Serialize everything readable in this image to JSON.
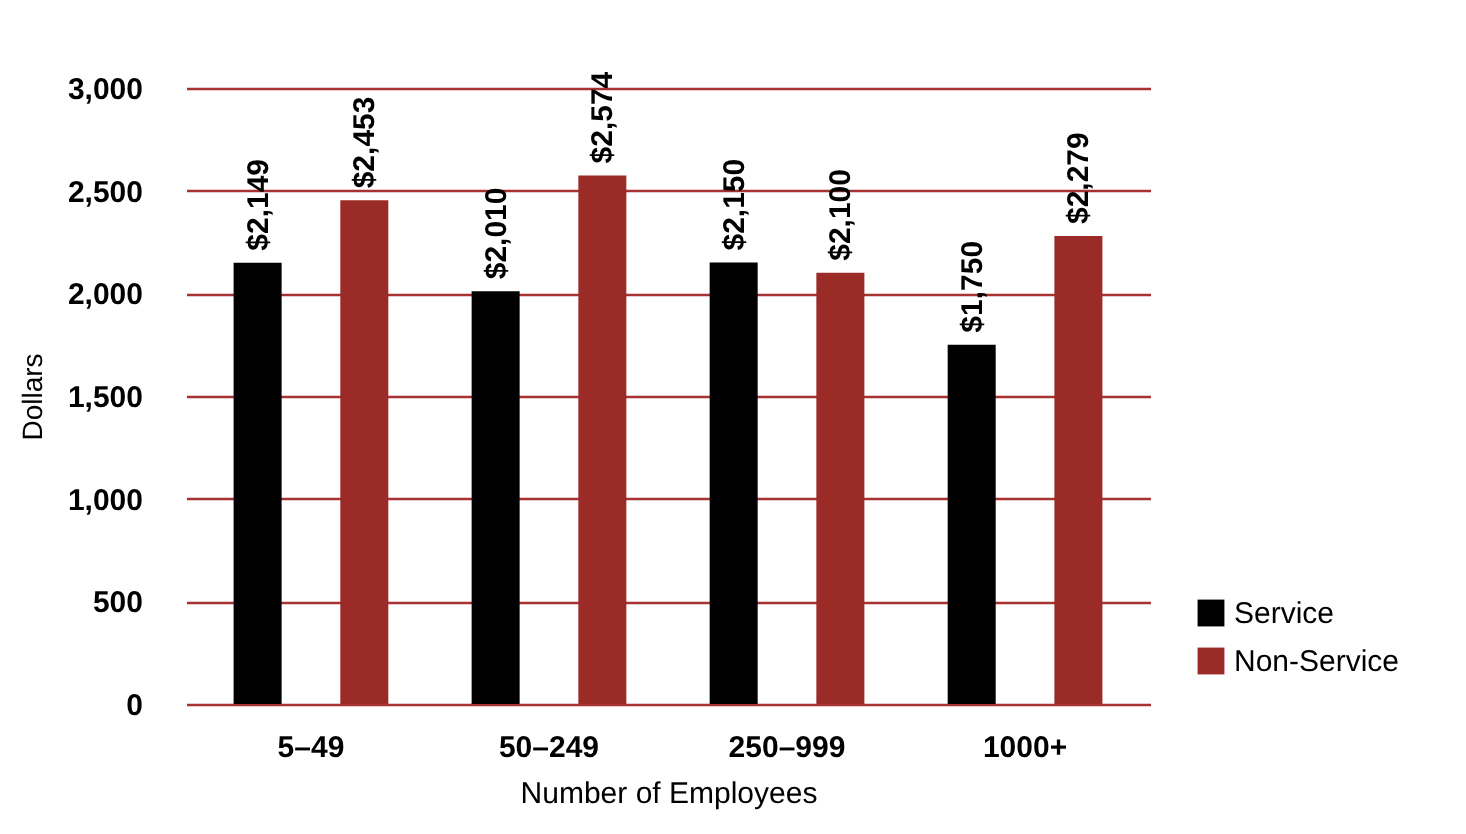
{
  "chart_data": {
    "type": "bar",
    "xlabel": "Number of Employees",
    "ylabel": "Dollars",
    "categories": [
      "5–49",
      "50–249",
      "250–999",
      "1000+"
    ],
    "series": [
      {
        "name": "Service",
        "color": "#000000",
        "values": [
          2149,
          2010,
          2150,
          1750
        ],
        "value_labels": [
          "$2,149",
          "$2,010",
          "$2,150",
          "$1,750"
        ]
      },
      {
        "name": "Non-Service",
        "color": "#9b2b27",
        "values": [
          2453,
          2574,
          2100,
          2279
        ],
        "value_labels": [
          "$2,453",
          "$2,574",
          "$2,100",
          "$2,279"
        ]
      }
    ],
    "ylim": [
      0,
      3000
    ],
    "yticks": [
      0,
      500,
      {
        "value": 1000,
        "label": "1,000"
      },
      {
        "value": 1500,
        "label": "1,500"
      },
      {
        "value": 2000,
        "label": "2,000"
      },
      {
        "value": 2500,
        "label": "2,500"
      },
      {
        "value": 3000,
        "label": "3,000"
      }
    ],
    "grid": "y",
    "legend": "bottom right"
  }
}
